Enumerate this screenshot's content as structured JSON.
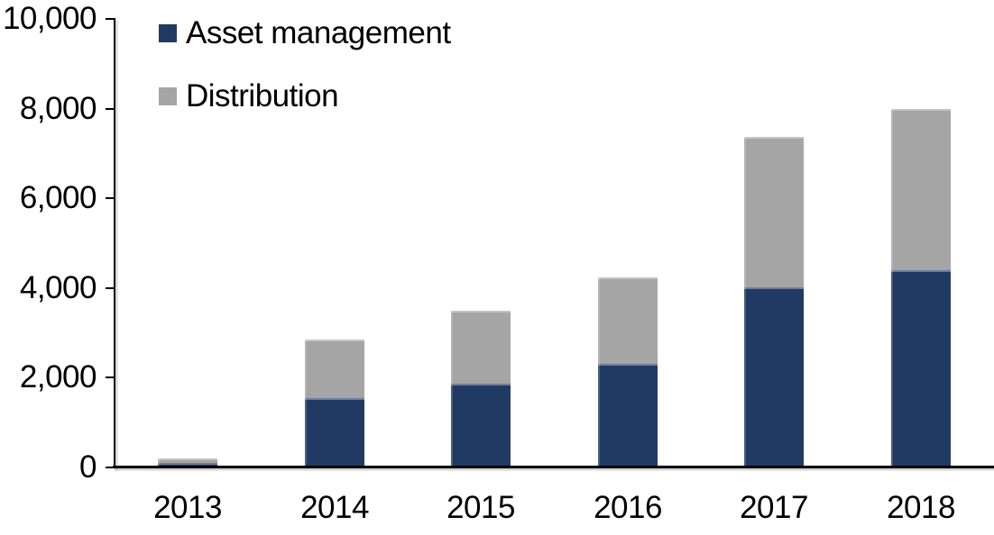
{
  "chart_data": {
    "type": "bar",
    "stacked": true,
    "title": "",
    "xlabel": "",
    "ylabel": "",
    "categories": [
      "2013",
      "2014",
      "2015",
      "2016",
      "2017",
      "2018"
    ],
    "series": [
      {
        "name": "Asset management",
        "color": "#213A63",
        "values": [
          100,
          1550,
          1870,
          2300,
          4020,
          4400
        ]
      },
      {
        "name": "Distribution",
        "color": "#A5A5A5",
        "values": [
          100,
          1310,
          1630,
          1920,
          3350,
          3600
        ]
      }
    ],
    "ylim": [
      0,
      10000
    ],
    "yticks": [
      0,
      2000,
      4000,
      6000,
      8000,
      10000
    ],
    "ytick_labels": [
      "0",
      "2,000",
      "4,000",
      "6,000",
      "8,000",
      "10,000"
    ],
    "grid": false,
    "legend_position": "top-left-inside",
    "axis_color": "#000000",
    "background_color": "#FFFFFF"
  }
}
